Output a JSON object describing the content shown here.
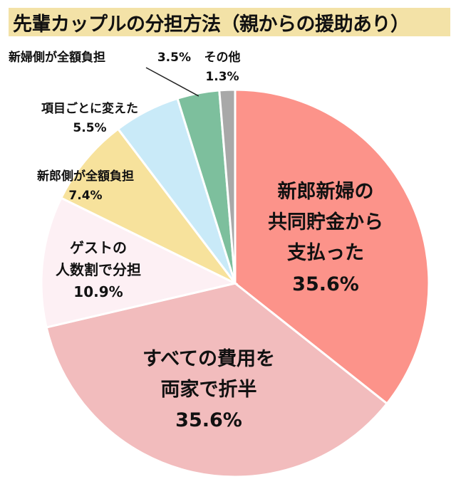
{
  "title": "先輩カップルの分担方法（親からの援助あり）",
  "chart_data": {
    "type": "pie",
    "start_angle_deg": 0,
    "direction": "clockwise",
    "slices": [
      {
        "label_lines": [
          "新郎新婦の",
          "共同貯金から",
          "支払った"
        ],
        "value_text": "35.6%",
        "value": 35.6,
        "color": "#fc938a"
      },
      {
        "label_lines": [
          "すべての費用を",
          "両家で折半"
        ],
        "value_text": "35.6%",
        "value": 35.6,
        "color": "#f2bcbd"
      },
      {
        "label_lines": [
          "ゲストの",
          "人数割で分担"
        ],
        "value_text": "10.9%",
        "value": 10.9,
        "color": "#fdf0f4"
      },
      {
        "label_lines": [
          "新郎側が全額負担"
        ],
        "value_text": "7.4%",
        "value": 7.4,
        "color": "#f7e29c"
      },
      {
        "label_lines": [
          "項目ごとに変えた"
        ],
        "value_text": "5.5%",
        "value": 5.5,
        "color": "#c9eaf8"
      },
      {
        "label_lines": [
          "新婦側が全額負担"
        ],
        "value_text": "3.5%",
        "value": 3.5,
        "color": "#7dbf9d"
      },
      {
        "label_lines": [
          "その他"
        ],
        "value_text": "1.3%",
        "value": 1.3,
        "color": "#a8a8a8"
      }
    ]
  }
}
